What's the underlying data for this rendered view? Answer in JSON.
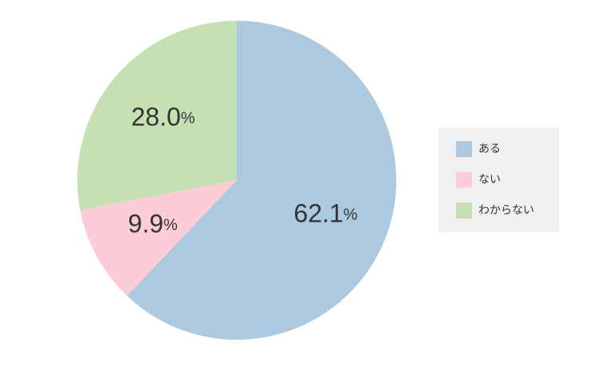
{
  "chart_data": {
    "type": "pie",
    "categories": [
      "ある",
      "ない",
      "わからない"
    ],
    "values": [
      62.1,
      9.9,
      28.0
    ],
    "value_labels": [
      "62.1%",
      "9.9%",
      "28.0%"
    ],
    "colors": [
      "#adc9e0",
      "#fccdd6",
      "#c5e0b2"
    ],
    "legend": "right"
  }
}
